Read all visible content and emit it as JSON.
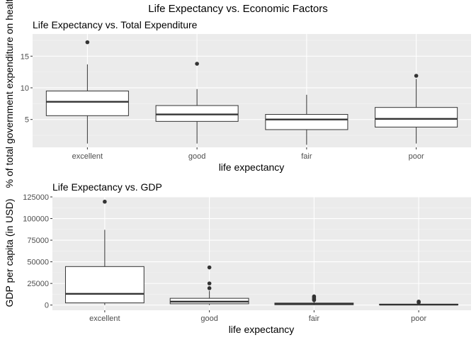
{
  "suptitle": "Life Expectancy vs. Economic Factors",
  "chart_data": [
    {
      "type": "box",
      "title": "Life Expectancy vs. Total Expenditure",
      "xlabel": "life expectancy",
      "ylabel": "% of total government expenditure on health",
      "categories": [
        "excellent",
        "good",
        "fair",
        "poor"
      ],
      "ylim": [
        0.6,
        18.5
      ],
      "yticks": [
        5,
        10,
        15
      ],
      "ytick_labels": [
        "5",
        "10",
        "15"
      ],
      "boxes": [
        {
          "name": "excellent",
          "whisker_low": 1.2,
          "q1": 5.6,
          "median": 7.8,
          "q3": 9.5,
          "whisker_high": 13.7,
          "outliers": [
            17.2
          ]
        },
        {
          "name": "good",
          "whisker_low": 1.2,
          "q1": 4.7,
          "median": 5.8,
          "q3": 7.2,
          "whisker_high": 9.8,
          "outliers": [
            13.8
          ]
        },
        {
          "name": "fair",
          "whisker_low": 1.0,
          "q1": 3.4,
          "median": 5.0,
          "q3": 5.8,
          "whisker_high": 8.9,
          "outliers": []
        },
        {
          "name": "poor",
          "whisker_low": 1.2,
          "q1": 3.8,
          "median": 5.1,
          "q3": 6.9,
          "whisker_high": 11.4,
          "outliers": [
            11.9
          ]
        }
      ]
    },
    {
      "type": "box",
      "title": "Life Expectancy vs. GDP",
      "xlabel": "life expectancy",
      "ylabel": "GDP per capita (in USD)",
      "categories": [
        "excellent",
        "good",
        "fair",
        "poor"
      ],
      "ylim": [
        -6000,
        125000
      ],
      "yticks": [
        0,
        25000,
        50000,
        75000,
        100000,
        125000
      ],
      "ytick_labels": [
        "0",
        "25000",
        "50000",
        "75000",
        "100000",
        "125000"
      ],
      "boxes": [
        {
          "name": "excellent",
          "whisker_low": 0,
          "q1": 2500,
          "median": 13000,
          "q3": 44500,
          "whisker_high": 87000,
          "outliers": [
            119500
          ]
        },
        {
          "name": "good",
          "whisker_low": 0,
          "q1": 1500,
          "median": 4000,
          "q3": 7800,
          "whisker_high": 16500,
          "outliers": [
            19500,
            25000,
            43500
          ]
        },
        {
          "name": "fair",
          "whisker_low": 0,
          "q1": 400,
          "median": 1200,
          "q3": 2300,
          "whisker_high": 4500,
          "outliers": [
            5800,
            7000,
            8500,
            10000
          ]
        },
        {
          "name": "poor",
          "whisker_low": 0,
          "q1": 200,
          "median": 500,
          "q3": 1000,
          "whisker_high": 2200,
          "outliers": [
            3000,
            4000
          ]
        }
      ]
    }
  ]
}
